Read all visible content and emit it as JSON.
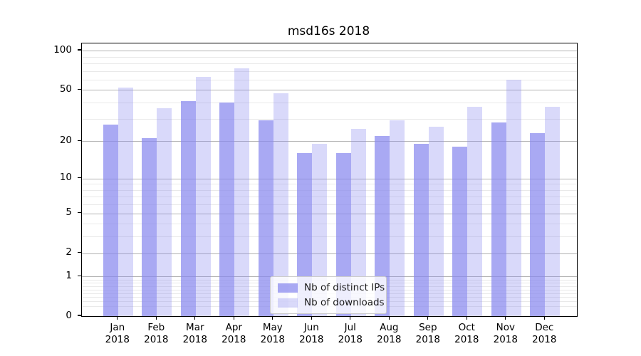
{
  "title": "msd16s 2018",
  "chart_data": {
    "type": "bar",
    "title": "msd16s 2018",
    "categories": [
      "Jan 2018",
      "Feb 2018",
      "Mar 2018",
      "Apr 2018",
      "May 2018",
      "Jun 2018",
      "Jul 2018",
      "Aug 2018",
      "Sep 2018",
      "Oct 2018",
      "Nov 2018",
      "Dec 2018"
    ],
    "series": [
      {
        "name": "Nb of distinct IPs",
        "color": "rgba(136,136,238,0.72)",
        "values": [
          27,
          21,
          41,
          40,
          29,
          16,
          16,
          22,
          19,
          18,
          28,
          23
        ]
      },
      {
        "name": "Nb of downloads",
        "color": "rgba(136,136,238,0.32)",
        "values": [
          52,
          36,
          63,
          73,
          47,
          19,
          25,
          29,
          26,
          37,
          60,
          37
        ]
      }
    ],
    "xlabel": "",
    "ylabel": "",
    "yscale": "log1p",
    "ylim": [
      0,
      112
    ],
    "y_ticks": [
      0,
      1,
      2,
      5,
      10,
      20,
      50,
      100
    ],
    "y_minor_ticks": [
      0.2,
      0.3,
      0.4,
      0.5,
      0.6,
      0.7,
      0.8,
      0.9,
      3,
      4,
      6,
      7,
      8,
      9,
      30,
      40,
      60,
      70,
      80,
      90
    ],
    "grid": true,
    "legend_position": "lower center"
  },
  "colors": {
    "bar_base": "#8888ee",
    "grid_major": "#b3b3b3",
    "grid_minor": "#e9e9e9",
    "spine": "#000000",
    "text": "#000000",
    "legend_bg": "rgba(255,255,255,0.8)",
    "legend_border": "#cccccc"
  }
}
